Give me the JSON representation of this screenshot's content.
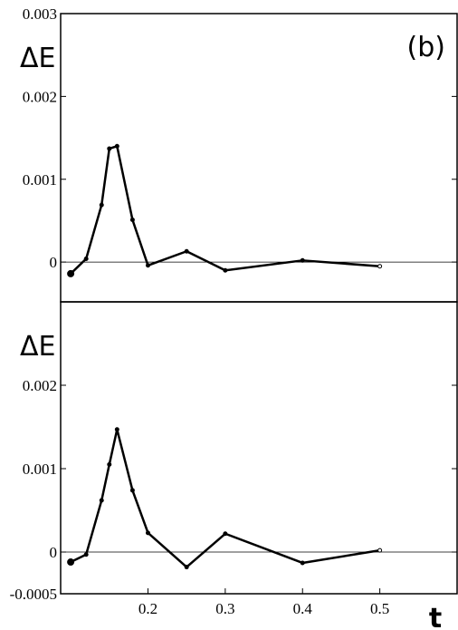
{
  "chart_data": [
    {
      "type": "line",
      "ylabel": "ΔE",
      "annotation": "(b)",
      "x": [
        0.1,
        0.12,
        0.14,
        0.15,
        0.16,
        0.18,
        0.2,
        0.25,
        0.3,
        0.4,
        0.5
      ],
      "values": [
        -0.00014,
        4e-05,
        0.00069,
        0.00137,
        0.0014,
        0.00051,
        -4e-05,
        0.00013,
        -0.0001,
        2e-05,
        -5e-05
      ],
      "color": "#000000",
      "xlim": [
        0.087,
        0.6
      ],
      "ylim": [
        -0.00048,
        0.003
      ],
      "yticks": [
        0,
        0.001,
        0.002,
        0.003
      ],
      "zero_line": true
    },
    {
      "type": "line",
      "ylabel": "ΔE",
      "xlabel": "t",
      "x": [
        0.1,
        0.12,
        0.14,
        0.15,
        0.16,
        0.18,
        0.2,
        0.25,
        0.3,
        0.4,
        0.5
      ],
      "values": [
        -0.00012,
        -3e-05,
        0.00062,
        0.00105,
        0.00147,
        0.00074,
        0.00023,
        -0.00018,
        0.00022,
        -0.00013,
        2e-05
      ],
      "color": "#000000",
      "xlim": [
        0.087,
        0.6
      ],
      "ylim": [
        -0.0005,
        0.003
      ],
      "xticks": [
        0.2,
        0.3,
        0.4,
        0.5
      ],
      "yticks": [
        -0.0005,
        0,
        0.001,
        0.002
      ],
      "zero_line": true
    }
  ]
}
